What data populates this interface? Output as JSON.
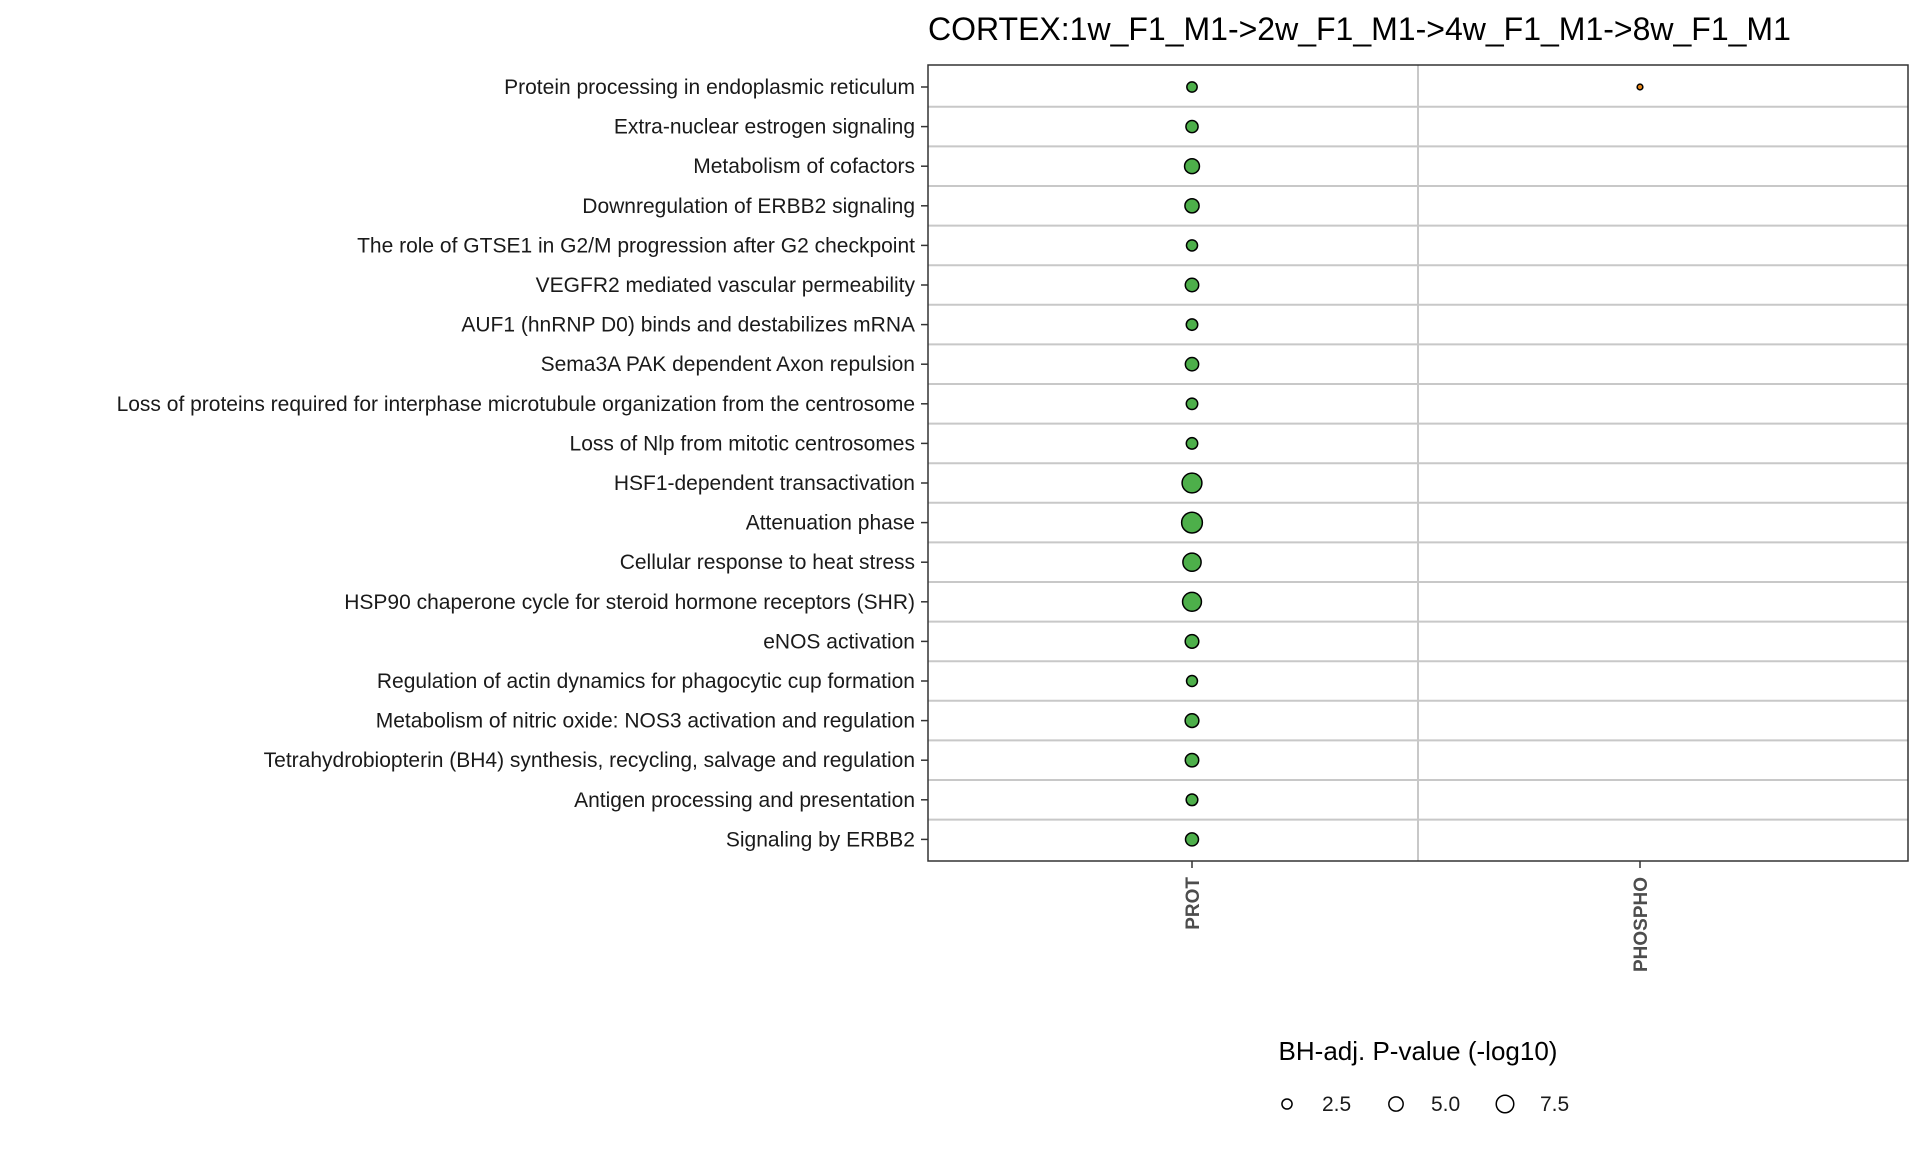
{
  "chart_data": {
    "type": "scatter",
    "title": "CORTEX:1w_F1_M1->2w_F1_M1->4w_F1_M1->8w_F1_M1",
    "columns": [
      "PROT",
      "PHOSPHO"
    ],
    "rows": [
      "Protein processing in endoplasmic reticulum",
      "Extra-nuclear estrogen signaling",
      "Metabolism of cofactors",
      "Downregulation of ERBB2 signaling",
      "The role of GTSE1 in G2/M progression after G2 checkpoint",
      "VEGFR2 mediated vascular permeability",
      "AUF1 (hnRNP D0) binds and destabilizes mRNA",
      "Sema3A PAK dependent Axon repulsion",
      "Loss of proteins required for interphase microtubule organization from the centrosome",
      "Loss of Nlp from mitotic centrosomes",
      "HSF1-dependent transactivation",
      "Attenuation phase",
      "Cellular response to heat stress",
      "HSP90 chaperone cycle for steroid hormone receptors (SHR)",
      "eNOS activation",
      "Regulation of actin dynamics for phagocytic cup formation",
      "Metabolism of nitric oxide: NOS3 activation and regulation",
      "Tetrahydrobiopterin (BH4) synthesis, recycling, salvage and regulation",
      "Antigen processing and presentation",
      "Signaling by ERBB2"
    ],
    "series": [
      {
        "column": "PROT",
        "color": "#4daf4a",
        "values": [
          2.6,
          3.6,
          5.4,
          4.9,
          3.0,
          4.4,
          3.2,
          4.3,
          3.2,
          3.2,
          9.6,
          10.5,
          8.1,
          8.7,
          4.5,
          2.9,
          4.6,
          4.4,
          3.3,
          4.1
        ]
      },
      {
        "column": "PHOSPHO",
        "color": "#e6861a",
        "values": [
          0.8,
          null,
          null,
          null,
          null,
          null,
          null,
          null,
          null,
          null,
          null,
          null,
          null,
          null,
          null,
          null,
          null,
          null,
          null,
          null
        ]
      }
    ],
    "legend": {
      "title": "BH-adj. P-value (-log10)",
      "placement": "bottom",
      "items": [
        {
          "value": 2.5,
          "label": "2.5"
        },
        {
          "value": 5.0,
          "label": "5.0"
        },
        {
          "value": 7.5,
          "label": "7.5"
        }
      ]
    },
    "grid": true
  }
}
